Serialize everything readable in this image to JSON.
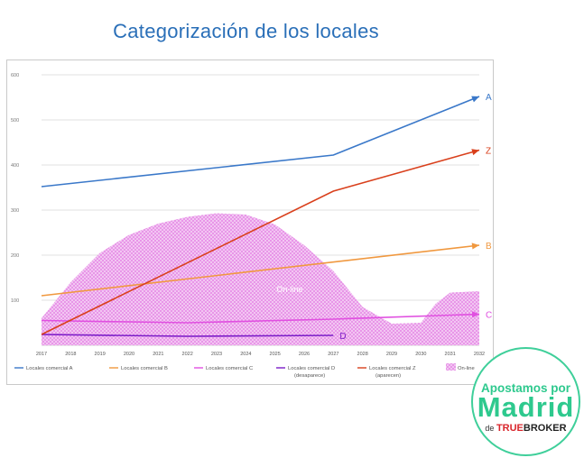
{
  "title": "Categorización de los locales",
  "chart_data": {
    "type": "line",
    "x": [
      2017,
      2018,
      2019,
      2020,
      2021,
      2022,
      2023,
      2024,
      2025,
      2026,
      2027,
      2028,
      2029,
      2030,
      2031,
      2032
    ],
    "ylim": [
      0,
      600
    ],
    "yticks": [
      100,
      200,
      300,
      400,
      500,
      600
    ],
    "grid": true,
    "legend_position": "bottom",
    "series": [
      {
        "name": "Locales comercial A",
        "name2": "",
        "label": "A",
        "color": "#3a78c9",
        "arrow": true,
        "points": [
          [
            2017,
            352
          ],
          [
            2027,
            422
          ],
          [
            2032,
            552
          ]
        ]
      },
      {
        "name": "Locales comercial B",
        "name2": "",
        "label": "B",
        "color": "#f0983f",
        "arrow": true,
        "points": [
          [
            2017,
            110
          ],
          [
            2032,
            222
          ]
        ]
      },
      {
        "name": "Locales comercial C",
        "name2": "",
        "label": "C",
        "color": "#e04fe0",
        "arrow": true,
        "points": [
          [
            2017,
            55
          ],
          [
            2022,
            50
          ],
          [
            2027,
            58
          ],
          [
            2032,
            69
          ]
        ]
      },
      {
        "name": "Locales comercial D",
        "name2": "(desaparece)",
        "label": "D",
        "color": "#7a1cc7",
        "arrow": false,
        "points": [
          [
            2017,
            24
          ],
          [
            2022,
            20
          ],
          [
            2027,
            22
          ]
        ]
      },
      {
        "name": "Locales comercial  Z",
        "name2": "(aparecen)",
        "label": "Z",
        "color": "#d9401c",
        "arrow": true,
        "points": [
          [
            2017,
            24
          ],
          [
            2027,
            342
          ],
          [
            2032,
            433
          ]
        ]
      }
    ],
    "area": {
      "name": "On-line",
      "label": "On-line",
      "color": "#e58ae5",
      "points": [
        [
          2017,
          60
        ],
        [
          2018,
          140
        ],
        [
          2019,
          205
        ],
        [
          2020,
          245
        ],
        [
          2021,
          270
        ],
        [
          2022,
          285
        ],
        [
          2023,
          293
        ],
        [
          2024,
          290
        ],
        [
          2025,
          268
        ],
        [
          2026,
          222
        ],
        [
          2027,
          165
        ],
        [
          2028,
          85
        ],
        [
          2029,
          48
        ],
        [
          2030,
          50
        ],
        [
          2030.5,
          92
        ],
        [
          2031,
          117
        ],
        [
          2032,
          120
        ]
      ]
    }
  },
  "badge": {
    "line1": "Apostamos por",
    "line2": "Madrid",
    "line3": "de",
    "brand_true": "TRUE",
    "brand_broker": "BROKER"
  }
}
